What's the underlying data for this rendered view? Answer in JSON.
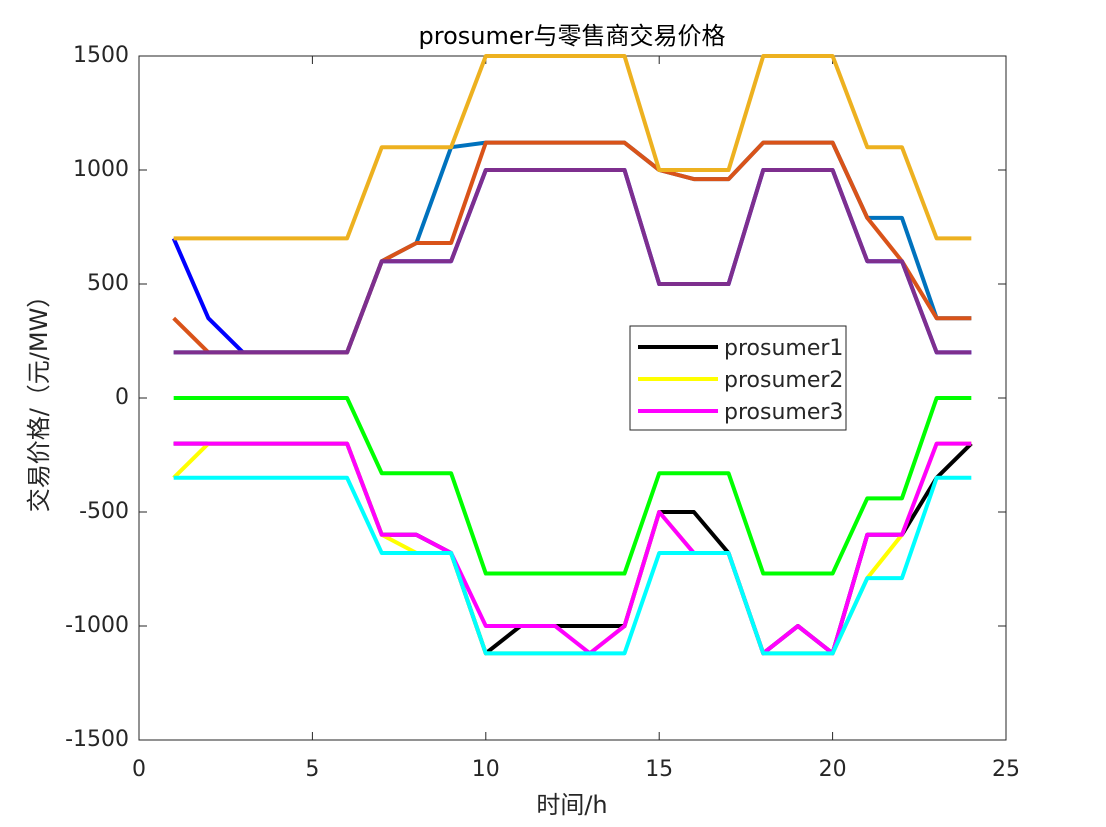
{
  "chart_data": {
    "type": "line",
    "title": "prosumer与零售商交易价格",
    "xlabel": "时间/h",
    "ylabel": "交易价格/（元/MW）",
    "x": [
      1,
      2,
      3,
      4,
      5,
      6,
      7,
      8,
      9,
      10,
      11,
      12,
      13,
      14,
      15,
      16,
      17,
      18,
      19,
      20,
      21,
      22,
      23,
      24
    ],
    "xlim": [
      0,
      25
    ],
    "xticks": [
      0,
      5,
      10,
      15,
      20,
      25
    ],
    "ylim": [
      -1500,
      1500
    ],
    "yticks": [
      -1500,
      -1000,
      -500,
      0,
      500,
      1000,
      1500
    ],
    "grid": false,
    "legend": "east",
    "series": [
      {
        "name": "prosumer1",
        "color": "#000000",
        "values": [
          -200,
          -200,
          -200,
          -200,
          -200,
          -200,
          -600,
          -600,
          -680,
          -1120,
          -1000,
          -1000,
          -1000,
          -1000,
          -500,
          -500,
          -680,
          -1120,
          -1000,
          -1120,
          -600,
          -600,
          -350,
          -200
        ]
      },
      {
        "name": "prosumer2",
        "color": "#ffff00",
        "values": [
          -350,
          -200,
          -200,
          -200,
          -200,
          -200,
          -600,
          -680,
          -680,
          -1120,
          -1120,
          -1120,
          -1120,
          -1000,
          -500,
          -680,
          -680,
          -1120,
          -1120,
          -1120,
          -790,
          -600,
          -200,
          -200
        ]
      },
      {
        "name": "prosumer3",
        "color": "#ff00ff",
        "values": [
          -200,
          -200,
          -200,
          -200,
          -200,
          -200,
          -600,
          -600,
          -680,
          -1000,
          -1000,
          -1000,
          -1120,
          -1000,
          -500,
          -680,
          -680,
          -1120,
          -1000,
          -1120,
          -600,
          -600,
          -200,
          -200
        ]
      },
      {
        "color": "#00ff00",
        "values": [
          0,
          0,
          0,
          0,
          0,
          0,
          -330,
          -330,
          -330,
          -770,
          -770,
          -770,
          -770,
          -770,
          -330,
          -330,
          -330,
          -770,
          -770,
          -770,
          -440,
          -440,
          0,
          0
        ]
      },
      {
        "color": "#00ffff",
        "values": [
          -350,
          -350,
          -350,
          -350,
          -350,
          -350,
          -680,
          -680,
          -680,
          -1120,
          -1120,
          -1120,
          -1120,
          -1120,
          -680,
          -680,
          -680,
          -1120,
          -1120,
          -1120,
          -790,
          -790,
          -350,
          -350
        ]
      },
      {
        "color": "#0000ff",
        "values": [
          700,
          350,
          200,
          200,
          200,
          200,
          600,
          600,
          600,
          1000,
          1000,
          1000,
          1000,
          1000,
          500,
          500,
          500,
          1000,
          1000,
          1000,
          600,
          600,
          200,
          200
        ]
      },
      {
        "color": "#0072bd",
        "values": [
          200,
          200,
          200,
          200,
          200,
          200,
          600,
          680,
          1100,
          1120,
          1120,
          1120,
          1120,
          1120,
          1000,
          960,
          960,
          1120,
          1120,
          1120,
          790,
          790,
          350,
          350
        ]
      },
      {
        "color": "#d95319",
        "values": [
          350,
          200,
          200,
          200,
          200,
          200,
          600,
          680,
          680,
          1120,
          1120,
          1120,
          1120,
          1120,
          1000,
          960,
          960,
          1120,
          1120,
          1120,
          790,
          600,
          350,
          350
        ]
      },
      {
        "color": "#7e2f8e",
        "values": [
          200,
          200,
          200,
          200,
          200,
          200,
          600,
          600,
          600,
          1000,
          1000,
          1000,
          1000,
          1000,
          500,
          500,
          500,
          1000,
          1000,
          1000,
          600,
          600,
          200,
          200
        ]
      },
      {
        "color": "#edb120",
        "values": [
          700,
          700,
          700,
          700,
          700,
          700,
          1100,
          1100,
          1100,
          1500,
          1500,
          1500,
          1500,
          1500,
          1000,
          1000,
          1000,
          1500,
          1500,
          1500,
          1100,
          1100,
          700,
          700
        ]
      }
    ]
  }
}
